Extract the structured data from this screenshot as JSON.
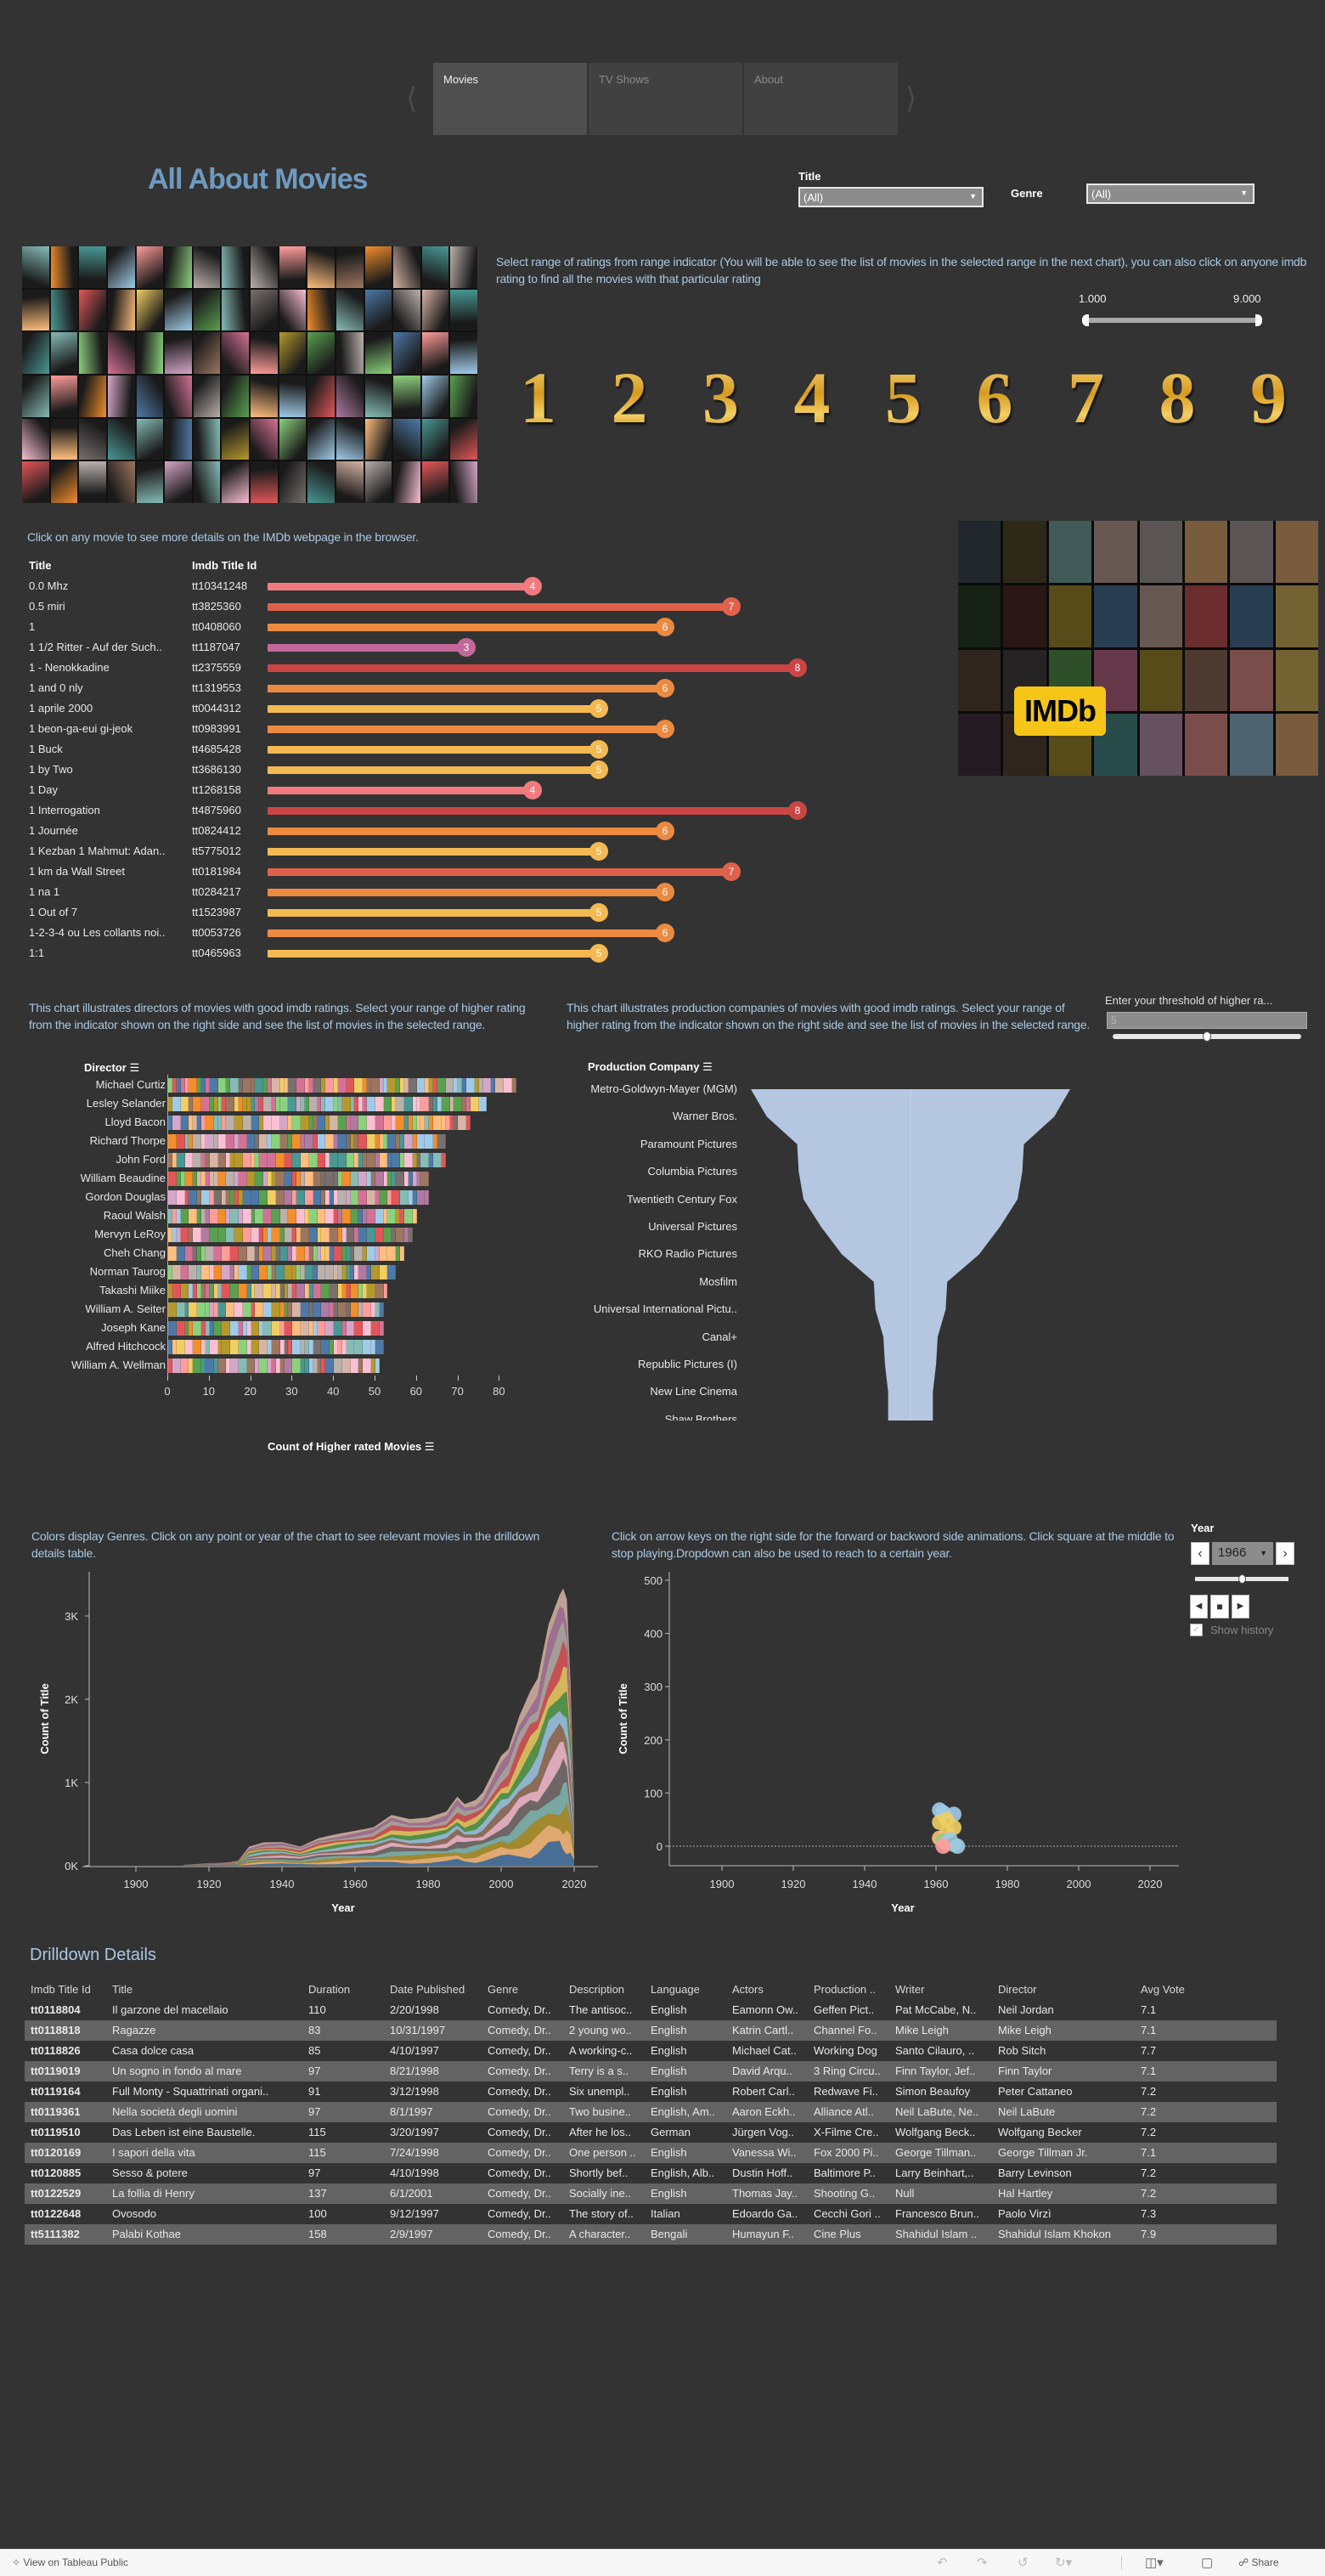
{
  "nav": {
    "tabs": [
      {
        "label": "Movies",
        "active": true
      },
      {
        "label": "TV Shows",
        "active": false
      },
      {
        "label": "About",
        "active": false
      }
    ],
    "prev_icon": "chevron-left-icon",
    "next_icon": "chevron-right-icon"
  },
  "header": {
    "title": "All About Movies",
    "title_color": "#6f9ac0"
  },
  "filters": {
    "title_label": "Title",
    "title_value": "(All)",
    "genre_label": "Genre",
    "genre_value": "(All)"
  },
  "ratings": {
    "intro": "Select range of ratings from range indicator  (You will be able to see the list of movies in the selected range in the next chart), you can also click on anyone imdb rating to find all the movies with that particular rating",
    "range_min": "1.000",
    "range_max": "9.000",
    "digits": [
      "1",
      "2",
      "3",
      "4",
      "5",
      "6",
      "7",
      "8",
      "9"
    ]
  },
  "movies": {
    "intro": "Click on any movie to see more details on the IMDb webpage in the browser.",
    "col_title": "Title",
    "col_id": "Imdb Title Id",
    "rating_colors": {
      "3": "#c2689a",
      "4": "#f07a7e",
      "5": "#f5b952",
      "6": "#ec8a40",
      "7": "#e0614a",
      "8": "#cc4545"
    },
    "rows": [
      {
        "title": "0.0 Mhz",
        "id": "tt10341248",
        "rating": 4
      },
      {
        "title": "0.5 miri",
        "id": "tt3825360",
        "rating": 7
      },
      {
        "title": "1",
        "id": "tt0408060",
        "rating": 6
      },
      {
        "title": "1 1/2 Ritter - Auf der Such..",
        "id": "tt1187047",
        "rating": 3
      },
      {
        "title": "1 - Nenokkadine",
        "id": "tt2375559",
        "rating": 8
      },
      {
        "title": "1 and 0 nly",
        "id": "tt1319553",
        "rating": 6
      },
      {
        "title": "1 aprile 2000",
        "id": "tt0044312",
        "rating": 5
      },
      {
        "title": "1 beon-ga-eui gi-jeok",
        "id": "tt0983991",
        "rating": 6
      },
      {
        "title": "1 Buck",
        "id": "tt4685428",
        "rating": 5
      },
      {
        "title": "1 by Two",
        "id": "tt3686130",
        "rating": 5
      },
      {
        "title": "1 Day",
        "id": "tt1268158",
        "rating": 4
      },
      {
        "title": "1 Interrogation",
        "id": "tt4875960",
        "rating": 8
      },
      {
        "title": "1 Journée",
        "id": "tt0824412",
        "rating": 6
      },
      {
        "title": "1 Kezban 1 Mahmut: Adan..",
        "id": "tt5775012",
        "rating": 5
      },
      {
        "title": "1 km da Wall Street",
        "id": "tt0181984",
        "rating": 7
      },
      {
        "title": "1 na 1",
        "id": "tt0284217",
        "rating": 6
      },
      {
        "title": "1 Out of 7",
        "id": "tt1523987",
        "rating": 5
      },
      {
        "title": "1-2-3-4 ou Les collants noi..",
        "id": "tt0053726",
        "rating": 6
      },
      {
        "title": "1:1",
        "id": "tt0465963",
        "rating": 5
      }
    ]
  },
  "imdb": {
    "logo_text": "IMDb",
    "logo_color": "#f5c518"
  },
  "chart_data": [
    {
      "type": "bar",
      "orientation": "horizontal",
      "stacked": true,
      "intro": "This chart illustrates directors of movies with good imdb ratings. Select your range of higher rating from the indicator  shown on the right side and see the list of movies in the selected range.",
      "ylabel": "Director",
      "xlabel": "Count of Higher rated Movies",
      "categories": [
        "Michael Curtiz",
        "Lesley Selander",
        "Lloyd Bacon",
        "Richard Thorpe",
        "John Ford",
        "William Beaudine",
        "Gordon Douglas",
        "Raoul Walsh",
        "Mervyn LeRoy",
        "Cheh Chang",
        "Norman Taurog",
        "Takashi Miike",
        "William A. Seiter",
        "Joseph Kane",
        "Alfred Hitchcock",
        "William A. Wellman"
      ],
      "values": [
        84,
        77,
        73,
        67,
        67,
        63,
        63,
        60,
        59,
        57,
        55,
        53,
        52,
        52,
        52,
        51
      ],
      "xticks": [
        "0",
        "10",
        "20",
        "30",
        "40",
        "50",
        "60",
        "70",
        "80"
      ],
      "xlim": [
        0,
        85
      ]
    },
    {
      "type": "funnel",
      "intro": "This chart illustrates production companies of movies with good imdb ratings. Select your range of higher rating from the indicator  shown on the right side and see the list of movies in the selected range.",
      "ylabel": "Production Company",
      "categories": [
        "Metro-Goldwyn-Mayer (MGM)",
        "Warner Bros.",
        "Paramount Pictures",
        "Columbia Pictures",
        "Twentieth Century Fox",
        "Universal Pictures",
        "RKO Radio Pictures",
        "Mosfilm",
        "Universal International Pictu..",
        "Canal+",
        "Republic Pictures (I)",
        "New Line Cinema",
        "Shaw Brothers"
      ],
      "relative_values": [
        100,
        90,
        71,
        70,
        67,
        56,
        43,
        23,
        22,
        17,
        16,
        14,
        14
      ],
      "color": "#b4c6e0",
      "threshold_label": "Enter your threshold of higher ra...",
      "threshold_value": "5",
      "threshold_level": 0.5
    },
    {
      "type": "area",
      "stacked": true,
      "intro": "Colors display Genres. Click on any point or year of the chart to see relevant movies in the drilldown details table.",
      "xlabel": "Year",
      "ylabel": "Count of Title",
      "xticks": [
        "1900",
        "1920",
        "1940",
        "1960",
        "1980",
        "2000",
        "2020"
      ],
      "yticks": [
        "0K",
        "1K",
        "2K",
        "3K"
      ],
      "xlim": [
        1887,
        2027
      ],
      "ylim": [
        0,
        3400
      ],
      "x": [
        1913,
        1920,
        1925,
        1928,
        1931,
        1935,
        1940,
        1945,
        1950,
        1955,
        1960,
        1965,
        1970,
        1975,
        1980,
        1985,
        1988,
        1990,
        1993,
        1995,
        2000,
        2002,
        2005,
        2008,
        2010,
        2013,
        2016,
        2017,
        2018,
        2019,
        2020
      ],
      "total": [
        10,
        30,
        40,
        60,
        230,
        280,
        285,
        230,
        330,
        380,
        420,
        460,
        610,
        560,
        580,
        650,
        830,
        740,
        790,
        880,
        1320,
        1400,
        1800,
        2100,
        2250,
        2900,
        3250,
        3330,
        3200,
        2200,
        700
      ]
    },
    {
      "type": "scatter",
      "intro": "Click on arrow keys on the right side for the forward or backword side animations. Click square at the middle to stop playing.Dropdown can also be used to reach to a certain year.",
      "xlabel": "Year",
      "ylabel": "Count of Title",
      "xticks": [
        "1900",
        "1920",
        "1940",
        "1960",
        "1980",
        "2000",
        "2020"
      ],
      "yticks": [
        "0",
        "100",
        "200",
        "300",
        "400",
        "500"
      ],
      "xlim": [
        1885,
        2028
      ],
      "ylim": [
        -35,
        510
      ],
      "points": [
        {
          "x": 1961,
          "y": 68,
          "color": "#a0cbe8"
        },
        {
          "x": 1962,
          "y": 63,
          "color": "#a0cbe8"
        },
        {
          "x": 1965,
          "y": 60,
          "color": "#a0cbe8"
        },
        {
          "x": 1961,
          "y": 45,
          "color": "#f1ce63"
        },
        {
          "x": 1963,
          "y": 50,
          "color": "#f1ce63"
        },
        {
          "x": 1965,
          "y": 35,
          "color": "#f1ce63"
        },
        {
          "x": 1963,
          "y": 25,
          "color": "#f1ce63"
        },
        {
          "x": 1961,
          "y": 15,
          "color": "#ffbe7d"
        },
        {
          "x": 1962,
          "y": 10,
          "color": "#8cd17d"
        },
        {
          "x": 1963,
          "y": 5,
          "color": "#d4a6c8"
        },
        {
          "x": 1964,
          "y": 12,
          "color": "#a0cbe8"
        },
        {
          "x": 1965,
          "y": 3,
          "color": "#86bcb6"
        },
        {
          "x": 1966,
          "y": 0,
          "color": "#a0cbe8"
        },
        {
          "x": 1962,
          "y": 0,
          "color": "#ff9d9a"
        }
      ]
    }
  ],
  "year_control": {
    "label": "Year",
    "value": "1966",
    "level": 0.5,
    "show_history_label": "Show history",
    "show_history_checked": true
  },
  "drilldown": {
    "title": "Drilldown Details",
    "columns": [
      "Imdb Title Id",
      "Title",
      "Duration",
      "Date Published",
      "Genre",
      "Description",
      "Language",
      "Actors",
      "Production ..",
      "Writer",
      "Director",
      "Avg Vote"
    ],
    "rows": [
      [
        "tt0118804",
        "Il garzone del macellaio",
        "110",
        "2/20/1998",
        "Comedy, Dr..",
        "The antisoc..",
        "English",
        "Eamonn Ow..",
        "Geffen Pict..",
        "Pat McCabe, N..",
        "Neil Jordan",
        "7.1"
      ],
      [
        "tt0118818",
        "Ragazze",
        "83",
        "10/31/1997",
        "Comedy, Dr..",
        "2 young wo..",
        "English",
        "Katrin Cartl..",
        "Channel Fo..",
        "Mike Leigh",
        "Mike Leigh",
        "7.1"
      ],
      [
        "tt0118826",
        "Casa dolce casa",
        "85",
        "4/10/1997",
        "Comedy, Dr..",
        "A working-c..",
        "English",
        "Michael Cat..",
        "Working Dog",
        "Santo Cilauro, ..",
        "Rob Sitch",
        "7.7"
      ],
      [
        "tt0119019",
        "Un sogno in fondo al mare",
        "97",
        "8/21/1998",
        "Comedy, Dr..",
        "Terry is a s..",
        "English",
        "David Arqu..",
        "3 Ring Circu..",
        "Finn Taylor, Jef..",
        "Finn Taylor",
        "7.1"
      ],
      [
        "tt0119164",
        "Full Monty - Squattrinati organi..",
        "91",
        "3/12/1998",
        "Comedy, Dr..",
        "Six unempl..",
        "English",
        "Robert Carl..",
        "Redwave Fi..",
        "Simon Beaufoy",
        "Peter Cattaneo",
        "7.2"
      ],
      [
        "tt0119361",
        "Nella società degli uomini",
        "97",
        "8/1/1997",
        "Comedy, Dr..",
        "Two busine..",
        "English, Am..",
        "Aaron Eckh..",
        "Alliance Atl..",
        "Neil LaBute, Ne..",
        "Neil LaBute",
        "7.2"
      ],
      [
        "tt0119510",
        "Das Leben ist eine Baustelle.",
        "115",
        "3/20/1997",
        "Comedy, Dr..",
        "After he los..",
        "German",
        "Jürgen Vog..",
        "X-Filme Cre..",
        "Wolfgang Beck..",
        "Wolfgang Becker",
        "7.2"
      ],
      [
        "tt0120169",
        "I sapori della vita",
        "115",
        "7/24/1998",
        "Comedy, Dr..",
        "One person ..",
        "English",
        "Vanessa Wi..",
        "Fox 2000 Pi..",
        "George Tillman..",
        "George Tillman Jr.",
        "7.1"
      ],
      [
        "tt0120885",
        "Sesso & potere",
        "97",
        "4/10/1998",
        "Comedy, Dr..",
        "Shortly bef..",
        "English, Alb..",
        "Dustin Hoff..",
        "Baltimore P..",
        "Larry Beinhart,..",
        "Barry Levinson",
        "7.2"
      ],
      [
        "tt0122529",
        "La follia di Henry",
        "137",
        "6/1/2001",
        "Comedy, Dr..",
        "Socially ine..",
        "English",
        "Thomas Jay..",
        "Shooting G..",
        "Null",
        "Hal Hartley",
        "7.2"
      ],
      [
        "tt0122648",
        "Ovosodo",
        "100",
        "9/12/1997",
        "Comedy, Dr..",
        "The story of..",
        "Italian",
        "Edoardo Ga..",
        "Cecchi Gori ..",
        "Francesco Brun..",
        "Paolo Virzì",
        "7.3"
      ],
      [
        "tt5111382",
        "Palabi Kothae",
        "158",
        "2/9/1997",
        "Comedy, Dr..",
        "A character..",
        "Bengali",
        "Humayun F..",
        "Cine Plus",
        "Shahidul Islam ..",
        "Shahidul Islam Khokon",
        "7.9"
      ]
    ]
  },
  "footer": {
    "view_label": "View on Tableau Public",
    "share_label": "Share"
  }
}
